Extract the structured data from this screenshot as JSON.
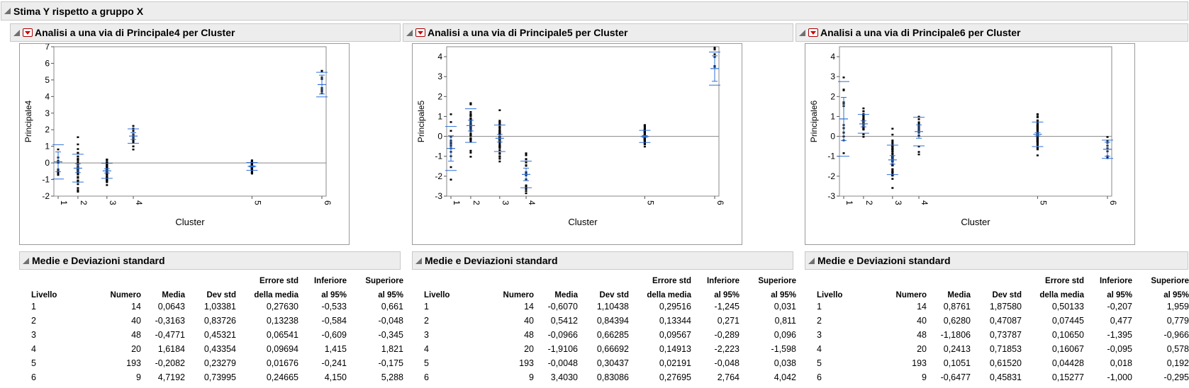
{
  "report": {
    "title": "Stima Y rispetto a gruppo X"
  },
  "panels": [
    {
      "title": "Analisi a una via di Principale4 per Cluster",
      "ylabel": "Principale4",
      "xlabel": "Cluster",
      "yticks": [
        "7",
        "6",
        "5",
        "4",
        "3",
        "2",
        "1",
        "0",
        "-1",
        "-2"
      ],
      "ymin": -2,
      "ymax": 7,
      "xticks": [
        "1",
        "2",
        "3",
        "4",
        "5",
        "6"
      ]
    },
    {
      "title": "Analisi a una via di Principale5 per Cluster",
      "ylabel": "Principale5",
      "xlabel": "Cluster",
      "yticks": [
        "4",
        "3",
        "2",
        "1",
        "0",
        "-1",
        "-2",
        "-3"
      ],
      "ymin": -3,
      "ymax": 4.5,
      "xticks": [
        "1",
        "2",
        "3",
        "4",
        "5",
        "6"
      ]
    },
    {
      "title": "Analisi a una via di Principale6 per Cluster",
      "ylabel": "Principale6",
      "xlabel": "Cluster",
      "yticks": [
        "4",
        "3",
        "2",
        "1",
        "0",
        "-1",
        "-2",
        "-3"
      ],
      "ymin": -3,
      "ymax": 4.5,
      "xticks": [
        "1",
        "2",
        "3",
        "4",
        "5",
        "6"
      ]
    }
  ],
  "tables": [
    {
      "title": "Medie e Deviazioni standard",
      "head1": [
        "",
        "",
        "",
        "",
        "Errore std",
        "Inferiore",
        "Superiore"
      ],
      "head2": [
        "Livello",
        "Numero",
        "Media",
        "Dev std",
        "della media",
        "al 95%",
        "al 95%"
      ],
      "rows": [
        [
          "1",
          "14",
          "0,0643",
          "1,03381",
          "0,27630",
          "-0,533",
          "0,661"
        ],
        [
          "2",
          "40",
          "-0,3163",
          "0,83726",
          "0,13238",
          "-0,584",
          "-0,048"
        ],
        [
          "3",
          "48",
          "-0,4771",
          "0,45321",
          "0,06541",
          "-0,609",
          "-0,345"
        ],
        [
          "4",
          "20",
          "1,6184",
          "0,43354",
          "0,09694",
          "1,415",
          "1,821"
        ],
        [
          "5",
          "193",
          "-0,2082",
          "0,23279",
          "0,01676",
          "-0,241",
          "-0,175"
        ],
        [
          "6",
          "9",
          "4,7192",
          "0,73995",
          "0,24665",
          "4,150",
          "5,288"
        ]
      ]
    },
    {
      "title": "Medie e Deviazioni standard",
      "head1": [
        "",
        "",
        "",
        "",
        "Errore std",
        "Inferiore",
        "Superiore"
      ],
      "head2": [
        "Livello",
        "Numero",
        "Media",
        "Dev std",
        "della media",
        "al 95%",
        "al 95%"
      ],
      "rows": [
        [
          "1",
          "14",
          "-0,6070",
          "1,10438",
          "0,29516",
          "-1,245",
          "0,031"
        ],
        [
          "2",
          "40",
          "0,5412",
          "0,84394",
          "0,13344",
          "0,271",
          "0,811"
        ],
        [
          "3",
          "48",
          "-0,0966",
          "0,66285",
          "0,09567",
          "-0,289",
          "0,096"
        ],
        [
          "4",
          "20",
          "-1,9106",
          "0,66692",
          "0,14913",
          "-2,223",
          "-1,598"
        ],
        [
          "5",
          "193",
          "-0,0048",
          "0,30437",
          "0,02191",
          "-0,048",
          "0,038"
        ],
        [
          "6",
          "9",
          "3,4030",
          "0,83086",
          "0,27695",
          "2,764",
          "4,042"
        ]
      ]
    },
    {
      "title": "Medie e Deviazioni standard",
      "head1": [
        "",
        "",
        "",
        "",
        "Errore std",
        "Inferiore",
        "Superiore"
      ],
      "head2": [
        "Livello",
        "Numero",
        "Media",
        "Dev std",
        "della media",
        "al 95%",
        "al 95%"
      ],
      "rows": [
        [
          "1",
          "14",
          "0,8761",
          "1,87580",
          "0,50133",
          "-0,207",
          "1,959"
        ],
        [
          "2",
          "40",
          "0,6280",
          "0,47087",
          "0,07445",
          "0,477",
          "0,779"
        ],
        [
          "3",
          "48",
          "-1,1806",
          "0,73787",
          "0,10650",
          "-1,395",
          "-0,966"
        ],
        [
          "4",
          "20",
          "0,2413",
          "0,71853",
          "0,16067",
          "-0,095",
          "0,578"
        ],
        [
          "5",
          "193",
          "0,1051",
          "0,61520",
          "0,04428",
          "0,018",
          "0,192"
        ],
        [
          "6",
          "9",
          "-0,6477",
          "0,45831",
          "0,15277",
          "-1,000",
          "-0,295"
        ]
      ]
    }
  ],
  "colors": {
    "accent": "#2e6fd8",
    "menu": "#d00000",
    "header_bg": "#ededed"
  }
}
